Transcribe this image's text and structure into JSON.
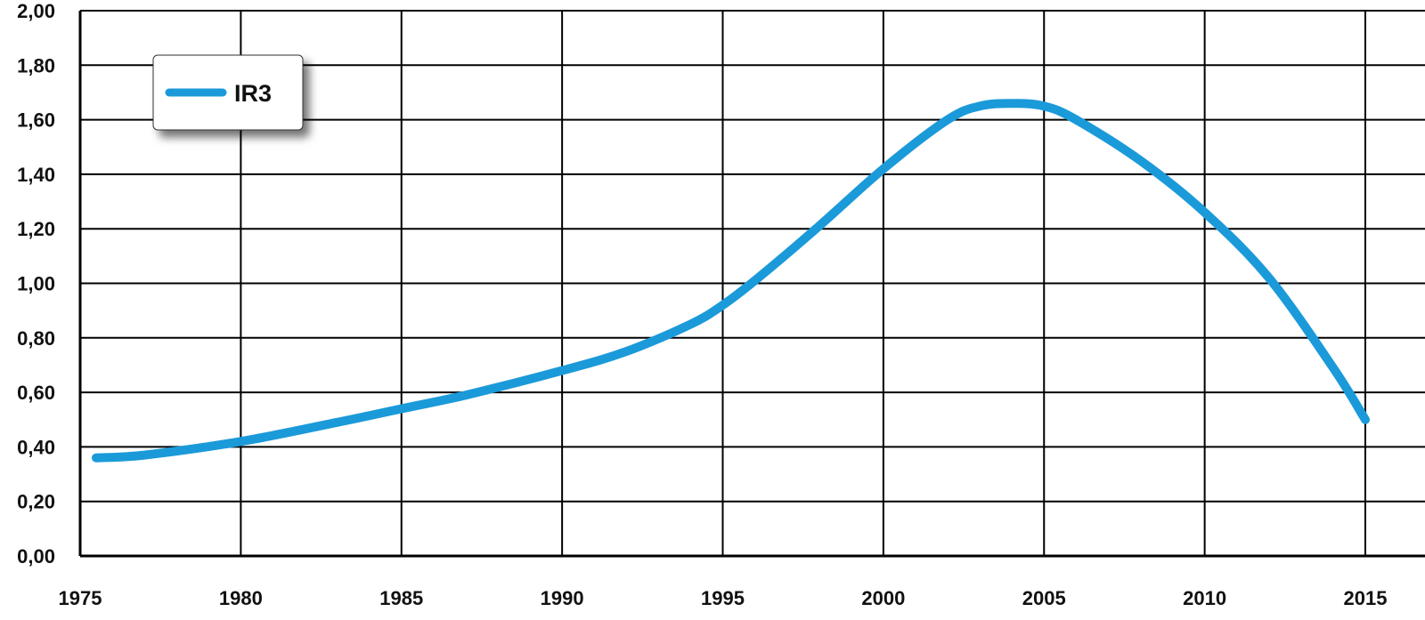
{
  "chart_data": {
    "type": "line",
    "title": "",
    "xlabel": "",
    "ylabel": "",
    "xlim": [
      1975,
      2015
    ],
    "ylim": [
      0,
      2
    ],
    "x_ticks": [
      1975,
      1980,
      1985,
      1990,
      1995,
      2000,
      2005,
      2010,
      2015
    ],
    "x_tick_labels": [
      "1975",
      "1980",
      "1985",
      "1990",
      "1995",
      "2000",
      "2005",
      "2010",
      "2015"
    ],
    "y_ticks": [
      0,
      0.2,
      0.4,
      0.6,
      0.8,
      1.0,
      1.2,
      1.4,
      1.6,
      1.8,
      2.0
    ],
    "y_tick_labels": [
      "0,00",
      "0,20",
      "0,40",
      "0,60",
      "0,80",
      "1,00",
      "1,20",
      "1,40",
      "1,60",
      "1,80",
      "2,00"
    ],
    "grid": true,
    "legend_position": "top-left",
    "series": [
      {
        "name": "IR3",
        "color": "#1b9ad9",
        "x": [
          1975.5,
          1977,
          1980,
          1983,
          1985,
          1987,
          1990,
          1992,
          1994,
          1995,
          1996,
          1998,
          2000,
          2002,
          2003,
          2004,
          2005,
          2006,
          2008,
          2010,
          2012,
          2014,
          2015
        ],
        "y": [
          0.36,
          0.37,
          0.42,
          0.49,
          0.54,
          0.59,
          0.68,
          0.75,
          0.85,
          0.92,
          1.01,
          1.21,
          1.42,
          1.6,
          1.65,
          1.66,
          1.65,
          1.6,
          1.45,
          1.26,
          1.02,
          0.69,
          0.5
        ]
      }
    ]
  }
}
